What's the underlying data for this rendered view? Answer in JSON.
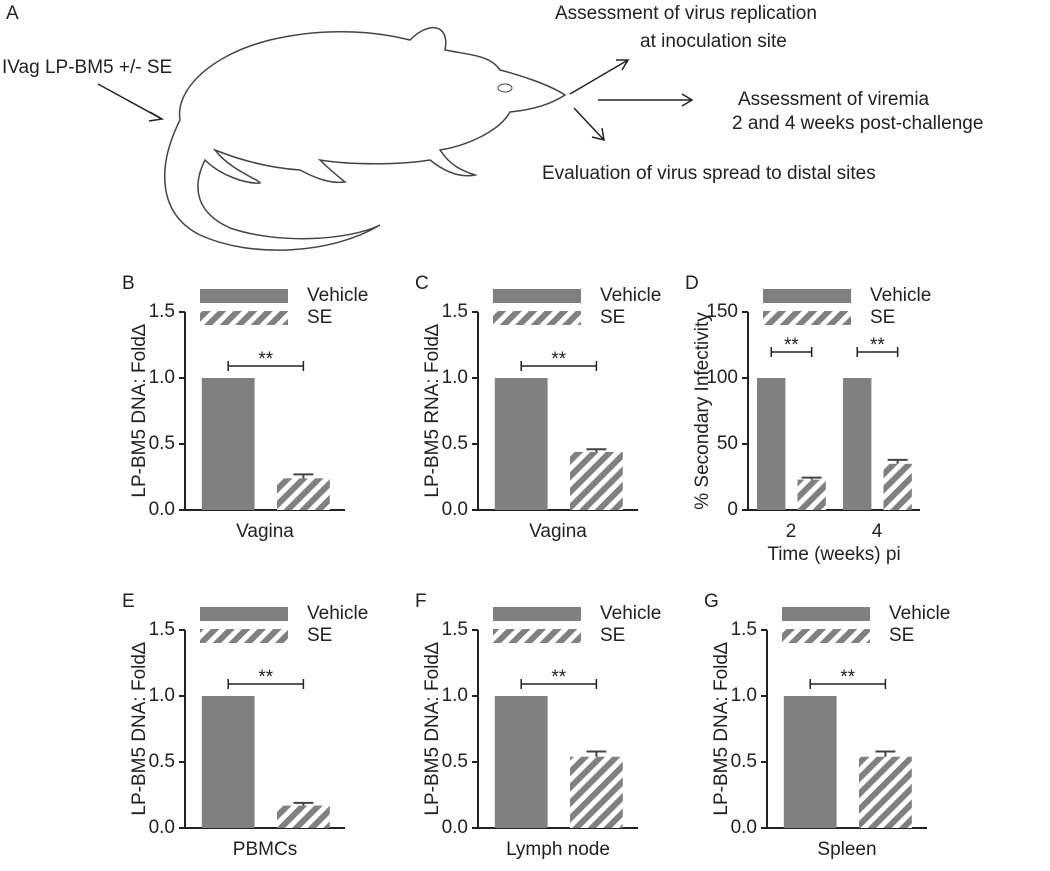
{
  "diagram": {
    "panel": "A",
    "treatment": "IVag LP-BM5 +/- SE",
    "outcomes": [
      "Assessment of virus replication",
      "at inoculation site",
      "Assessment of  viremia",
      "2 and 4 weeks post-challenge",
      "Evaluation of virus spread to distal sites"
    ]
  },
  "chart_data": [
    {
      "type": "bar",
      "panel": "B",
      "ylabel": "LP-BM5 DNA: Fold∆",
      "categories": [
        "Vagina"
      ],
      "series": [
        {
          "name": "Vehicle",
          "color": "#808080",
          "values": [
            1.0
          ]
        },
        {
          "name": "SE",
          "color": "#808080",
          "hatch": true,
          "values": [
            0.24
          ],
          "errors": [
            0.03
          ]
        }
      ],
      "annotations": [
        "**"
      ],
      "ylim": [
        0,
        1.5
      ],
      "yticks": [
        {
          "value": 0,
          "label": "0.0"
        },
        {
          "value": 0.5,
          "label": "0.5"
        },
        {
          "value": 1,
          "label": "1.0"
        },
        {
          "value": 1.5,
          "label": "1.5"
        }
      ]
    },
    {
      "type": "bar",
      "panel": "C",
      "ylabel": "LP-BM5 RNA: Fold∆",
      "categories": [
        "Vagina"
      ],
      "series": [
        {
          "name": "Vehicle",
          "color": "#808080",
          "values": [
            1.0
          ]
        },
        {
          "name": "SE",
          "color": "#808080",
          "hatch": true,
          "values": [
            0.44
          ],
          "errors": [
            0.02
          ]
        }
      ],
      "annotations": [
        "**"
      ],
      "ylim": [
        0,
        1.5
      ],
      "yticks": [
        {
          "value": 0,
          "label": "0.0"
        },
        {
          "value": 0.5,
          "label": "0.5"
        },
        {
          "value": 1,
          "label": "1.0"
        },
        {
          "value": 1.5,
          "label": "1.5"
        }
      ]
    },
    {
      "type": "bar",
      "panel": "D",
      "ylabel": "% Secondary  Infectivity",
      "xlabel": "Time (weeks) pi",
      "categories": [
        "2",
        "4"
      ],
      "series": [
        {
          "name": "Vehicle",
          "color": "#808080",
          "values": [
            100,
            100
          ]
        },
        {
          "name": "SE",
          "color": "#808080",
          "hatch": true,
          "values": [
            23,
            35
          ],
          "errors": [
            1.5,
            3
          ]
        }
      ],
      "annotations": [
        "**",
        "**"
      ],
      "ylim": [
        0,
        150
      ],
      "yticks": [
        0,
        50,
        100,
        150
      ]
    },
    {
      "type": "bar",
      "panel": "E",
      "ylabel": "LP-BM5 DNA: Fold∆",
      "categories": [
        "PBMCs"
      ],
      "series": [
        {
          "name": "Vehicle",
          "color": "#808080",
          "values": [
            1.0
          ]
        },
        {
          "name": "SE",
          "color": "#808080",
          "hatch": true,
          "values": [
            0.17
          ],
          "errors": [
            0.02
          ]
        }
      ],
      "annotations": [
        "**"
      ],
      "ylim": [
        0,
        1.5
      ],
      "yticks": [
        {
          "value": 0,
          "label": "0.0"
        },
        {
          "value": 0.5,
          "label": "0.5"
        },
        {
          "value": 1,
          "label": "1.0"
        },
        {
          "value": 1.5,
          "label": "1.5"
        }
      ]
    },
    {
      "type": "bar",
      "panel": "F",
      "ylabel": "LP-BM5 DNA: Fold∆",
      "categories": [
        "Lymph node"
      ],
      "series": [
        {
          "name": "Vehicle",
          "color": "#808080",
          "values": [
            1.0
          ]
        },
        {
          "name": "SE",
          "color": "#808080",
          "hatch": true,
          "values": [
            0.54
          ],
          "errors": [
            0.04
          ]
        }
      ],
      "annotations": [
        "**"
      ],
      "ylim": [
        0,
        1.5
      ],
      "yticks": [
        {
          "value": 0,
          "label": "0.0"
        },
        {
          "value": 0.5,
          "label": "0.5"
        },
        {
          "value": 1,
          "label": "1.0"
        },
        {
          "value": 1.5,
          "label": "1.5"
        }
      ]
    },
    {
      "type": "bar",
      "panel": "G",
      "ylabel": "LP-BM5 DNA: Fold∆",
      "categories": [
        "Spleen"
      ],
      "series": [
        {
          "name": "Vehicle",
          "color": "#808080",
          "values": [
            1.0
          ]
        },
        {
          "name": "SE",
          "color": "#808080",
          "hatch": true,
          "values": [
            0.54
          ],
          "errors": [
            0.04
          ]
        }
      ],
      "annotations": [
        "**"
      ],
      "ylim": [
        0,
        1.5
      ],
      "yticks": [
        {
          "value": 0,
          "label": "0.0"
        },
        {
          "value": 0.5,
          "label": "0.5"
        },
        {
          "value": 1,
          "label": "1.0"
        },
        {
          "value": 1.5,
          "label": "1.5"
        }
      ]
    }
  ]
}
